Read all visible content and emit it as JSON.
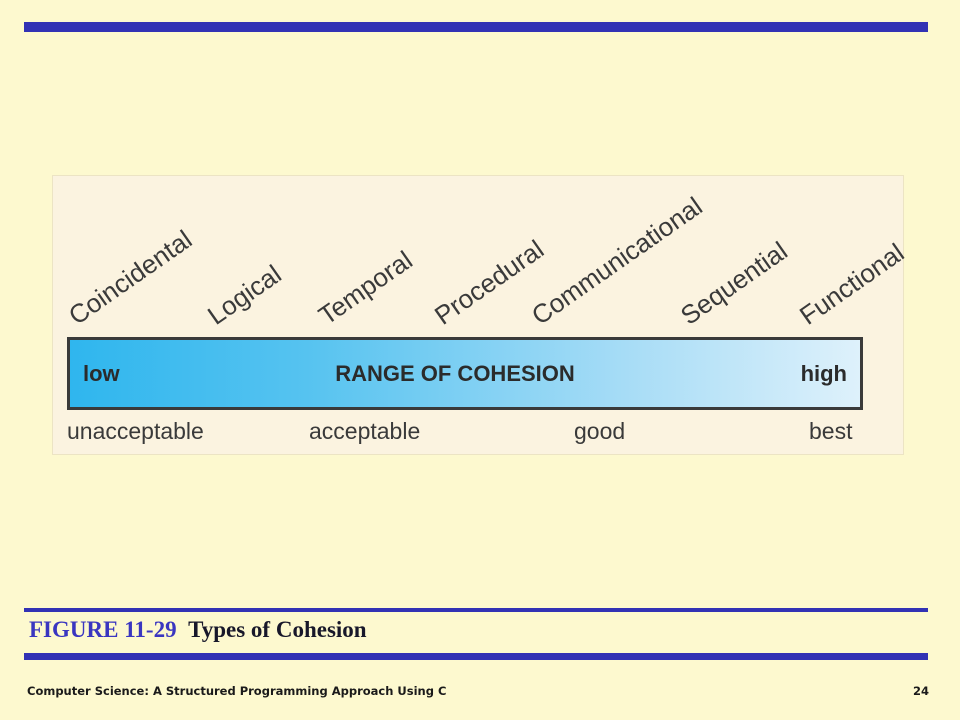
{
  "figure": {
    "cohesion_types": [
      "Coincidental",
      "Logical",
      "Temporal",
      "Procedural",
      "Communicational",
      "Sequential",
      "Functional"
    ],
    "bar": {
      "low": "low",
      "title": "RANGE OF COHESION",
      "high": "high"
    },
    "ratings": [
      "unacceptable",
      "acceptable",
      "good",
      "best"
    ]
  },
  "caption": {
    "number": "FIGURE 11-29",
    "title": "Types of Cohesion"
  },
  "footer": {
    "book": "Computer Science: A Structured Programming Approach Using C",
    "page": "24"
  },
  "colors": {
    "background": "#fdf9cf",
    "rule": "#3232b4",
    "bar_start": "#2fb6ee",
    "bar_end": "#def1fb",
    "caption_number": "#3a36c0"
  }
}
